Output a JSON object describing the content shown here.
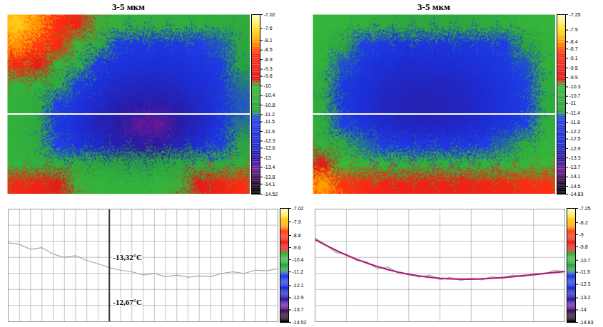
{
  "chart_data": [
    {
      "type": "heatmap",
      "title": "3-5 мкм",
      "tick_labels": false,
      "cells": [
        [
          -7.8,
          -8.2,
          -8.8,
          -9.2,
          -10.0,
          -10.4,
          -10.5,
          -10.5,
          -10.5,
          -10.5,
          -10.6,
          -10.6
        ],
        [
          -8.2,
          -8.6,
          -9.0,
          -10.2,
          -10.6,
          -11.6,
          -11.8,
          -11.9,
          -11.8,
          -11.6,
          -11.3,
          -10.8
        ],
        [
          -9.0,
          -9.5,
          -10.3,
          -10.5,
          -11.7,
          -12.1,
          -12.2,
          -12.3,
          -12.2,
          -12.0,
          -11.7,
          -11.0
        ],
        [
          -10.2,
          -10.4,
          -10.6,
          -11.6,
          -12.2,
          -12.5,
          -12.6,
          -12.6,
          -12.5,
          -12.3,
          -11.9,
          -11.2
        ],
        [
          -10.4,
          -10.6,
          -11.5,
          -12.1,
          -12.5,
          -12.8,
          -12.9,
          -12.9,
          -12.8,
          -12.5,
          -12.0,
          -11.3
        ],
        [
          -10.4,
          -10.7,
          -11.8,
          -12.3,
          -12.7,
          -13.0,
          -13.4,
          -13.5,
          -13.0,
          -12.6,
          -12.0,
          -11.2
        ],
        [
          -10.4,
          -10.6,
          -11.4,
          -12.1,
          -12.5,
          -12.8,
          -13.0,
          -13.0,
          -12.7,
          -12.3,
          -11.7,
          -10.9
        ],
        [
          -10.3,
          -10.4,
          -10.5,
          -10.6,
          -10.8,
          -11.0,
          -11.1,
          -11.0,
          -10.8,
          -10.6,
          -10.5,
          -10.4
        ],
        [
          -9.0,
          -9.2,
          -9.6,
          -10.0,
          -10.2,
          -10.3,
          -10.3,
          -10.2,
          -10.0,
          -9.6,
          -9.2,
          -8.8
        ]
      ],
      "colorbar": {
        "range": [
          -14.52,
          -7.02
        ],
        "ticks": [
          -7.02,
          -7.6,
          -8.1,
          -8.5,
          -8.9,
          -9.3,
          -9.6,
          -10,
          -10.4,
          -10.8,
          -11.2,
          -11.5,
          -11.9,
          -12.3,
          -12.6,
          -13,
          -13.4,
          -13.8,
          -14.1,
          -14.52
        ]
      }
    },
    {
      "type": "heatmap",
      "title": "3-5 мкм",
      "tick_labels": false,
      "cells": [
        [
          -10.4,
          -10.5,
          -10.6,
          -10.8,
          -11.0,
          -11.0,
          -11.0,
          -11.0,
          -10.9,
          -10.7,
          -10.5,
          -10.4
        ],
        [
          -10.5,
          -11.0,
          -11.8,
          -12.1,
          -12.3,
          -12.3,
          -12.3,
          -12.2,
          -12.1,
          -11.8,
          -11.2,
          -10.6
        ],
        [
          -10.6,
          -11.6,
          -12.2,
          -12.5,
          -12.7,
          -12.7,
          -12.6,
          -12.6,
          -12.4,
          -12.1,
          -11.6,
          -10.7
        ],
        [
          -10.8,
          -12.0,
          -12.5,
          -12.8,
          -12.9,
          -12.9,
          -12.9,
          -12.8,
          -12.6,
          -12.3,
          -11.8,
          -10.8
        ],
        [
          -10.9,
          -12.1,
          -12.6,
          -12.9,
          -13.0,
          -13.1,
          -13.0,
          -12.9,
          -12.7,
          -12.4,
          -11.9,
          -10.9
        ],
        [
          -10.8,
          -11.8,
          -12.4,
          -12.7,
          -12.9,
          -12.9,
          -12.9,
          -12.8,
          -12.6,
          -12.3,
          -11.7,
          -10.7
        ],
        [
          -10.6,
          -10.9,
          -11.5,
          -11.9,
          -12.1,
          -12.2,
          -12.2,
          -12.1,
          -11.9,
          -11.5,
          -10.9,
          -10.5
        ],
        [
          -9.8,
          -10.3,
          -10.5,
          -10.6,
          -10.7,
          -10.7,
          -10.7,
          -10.7,
          -10.6,
          -10.5,
          -10.4,
          -10.3
        ],
        [
          -8.4,
          -8.9,
          -9.2,
          -9.4,
          -9.5,
          -9.5,
          -9.5,
          -9.5,
          -9.4,
          -9.3,
          -9.1,
          -9.0
        ]
      ],
      "colorbar": {
        "range": [
          -14.83,
          -7.25
        ],
        "ticks": [
          -7.25,
          -7.9,
          -8.4,
          -8.7,
          -9.1,
          -9.5,
          -9.9,
          -10.3,
          -10.7,
          -11,
          -11.4,
          -11.8,
          -12.2,
          -12.5,
          -12.9,
          -13.3,
          -13.7,
          -14.1,
          -14.5,
          -14.83
        ]
      }
    },
    {
      "type": "line",
      "grid": true,
      "tick_labels": false,
      "x": [
        0,
        1,
        2,
        3,
        4,
        5,
        6,
        7,
        8,
        9,
        10,
        11,
        12,
        13,
        14,
        15,
        16,
        17,
        18,
        19,
        20,
        21,
        22,
        23,
        24
      ],
      "xlim": [
        0,
        24
      ],
      "xticks": [
        0,
        1,
        2,
        3,
        4,
        5,
        6,
        7,
        8,
        9,
        10,
        11,
        12,
        13,
        14,
        15,
        16,
        17,
        18,
        19,
        20,
        21,
        22,
        23,
        24
      ],
      "ylim": [
        -15,
        -11.5
      ],
      "yticks": [
        -15,
        -14.5,
        -14,
        -13.5,
        -13,
        -12.5,
        -12,
        -11.5
      ],
      "series": [
        {
          "color": "#a6a6a6",
          "line_style": "solid",
          "values": [
            -12.55,
            -12.6,
            -12.75,
            -12.7,
            -12.9,
            -13.0,
            -12.95,
            -13.1,
            -13.2,
            -13.32,
            -13.4,
            -13.45,
            -13.55,
            -13.5,
            -13.6,
            -13.55,
            -13.62,
            -13.58,
            -13.6,
            -13.5,
            -13.45,
            -13.5,
            -13.4,
            -13.42,
            -13.35
          ]
        }
      ],
      "cursor_x": 9,
      "annotations": [
        {
          "text": "-13,32°C",
          "x": 9,
          "y": -13.0
        },
        {
          "text": "-12,67°C",
          "x": 9,
          "y": -14.4
        }
      ],
      "colorbar": {
        "range": [
          -14.52,
          -7.02
        ],
        "ticks": [
          -7.02,
          -7.9,
          -8.8,
          -9.6,
          -10.4,
          -11.2,
          -12.1,
          -12.9,
          -13.7,
          -14.52
        ]
      }
    },
    {
      "type": "line",
      "grid": true,
      "tick_labels": false,
      "x": [
        0,
        1,
        2,
        3,
        4,
        5,
        6,
        7,
        8,
        9,
        10,
        11,
        12,
        13,
        14,
        15,
        16,
        17,
        18,
        19,
        20,
        21,
        22,
        23,
        24
      ],
      "xlim": [
        0,
        24
      ],
      "xticks": [
        0,
        3,
        6,
        9,
        12,
        15,
        18,
        21,
        24
      ],
      "ylim": [
        -15,
        -11.5
      ],
      "yticks": [
        -15,
        -14.5,
        -14,
        -13.5,
        -13,
        -12.5,
        -12,
        -11.5
      ],
      "series": [
        {
          "color": "#a6a6a6",
          "line_style": "solid",
          "values": [
            -12.4,
            -12.6,
            -12.85,
            -12.9,
            -13.1,
            -13.15,
            -13.35,
            -13.3,
            -13.5,
            -13.5,
            -13.62,
            -13.55,
            -13.7,
            -13.62,
            -13.72,
            -13.65,
            -13.7,
            -13.6,
            -13.66,
            -13.55,
            -13.6,
            -13.5,
            -13.52,
            -13.4,
            -13.45
          ]
        },
        {
          "color": "#b0207a",
          "line_style": "solid",
          "values": [
            -12.45,
            -12.62,
            -12.78,
            -12.93,
            -13.06,
            -13.18,
            -13.29,
            -13.38,
            -13.46,
            -13.53,
            -13.58,
            -13.62,
            -13.65,
            -13.67,
            -13.68,
            -13.68,
            -13.67,
            -13.65,
            -13.63,
            -13.6,
            -13.57,
            -13.54,
            -13.5,
            -13.47,
            -13.44
          ]
        }
      ],
      "colorbar": {
        "range": [
          -14.83,
          -7.25
        ],
        "ticks": [
          -7.25,
          -8.2,
          -9,
          -9.8,
          -10.7,
          -11.5,
          -12.3,
          -13.2,
          -14,
          -14.83
        ]
      }
    }
  ]
}
